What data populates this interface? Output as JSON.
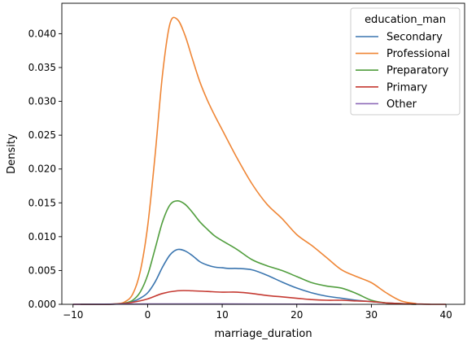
{
  "chart_data": {
    "type": "line",
    "subtype": "kde",
    "xlabel": "marriage_duration",
    "ylabel": "Density",
    "xlim": [
      -11.5,
      42.5
    ],
    "ylim": [
      0,
      0.0445
    ],
    "x_ticks": [
      -10,
      0,
      10,
      20,
      30,
      40
    ],
    "x_tick_labels": [
      "−10",
      "0",
      "10",
      "20",
      "30",
      "40"
    ],
    "y_ticks": [
      0,
      0.005,
      0.01,
      0.015,
      0.02,
      0.025,
      0.03,
      0.035,
      0.04
    ],
    "y_tick_labels": [
      "0.000",
      "0.005",
      "0.010",
      "0.015",
      "0.020",
      "0.025",
      "0.030",
      "0.035",
      "0.040"
    ],
    "grid": false,
    "legend": {
      "title": "education_man",
      "placement": "top-right"
    },
    "series": [
      {
        "name": "Secondary",
        "color": "#3a75af",
        "x": [
          -9,
          -6,
          -4,
          -3,
          -2,
          -1,
          0,
          1,
          2,
          3,
          4,
          5,
          6,
          7,
          8,
          9,
          10,
          11,
          12,
          14,
          16,
          18,
          20,
          22,
          24,
          26,
          28,
          30,
          32,
          34,
          36
        ],
        "y": [
          0,
          0,
          5e-05,
          0.00015,
          0.0004,
          0.0009,
          0.0017,
          0.0033,
          0.0055,
          0.0073,
          0.0081,
          0.0079,
          0.0072,
          0.0063,
          0.0058,
          0.0055,
          0.0054,
          0.0053,
          0.0053,
          0.0051,
          0.0043,
          0.0033,
          0.0024,
          0.0017,
          0.0012,
          0.0009,
          0.0006,
          0.0004,
          0.0002,
          0.0001,
          0
        ]
      },
      {
        "name": "Professional",
        "color": "#ef8636",
        "x": [
          -9,
          -6,
          -4,
          -3,
          -2,
          -1,
          0,
          1,
          2,
          3,
          4,
          5,
          6,
          7,
          8,
          9,
          10,
          12,
          14,
          16,
          18,
          20,
          22,
          24,
          26,
          28,
          30,
          32,
          34,
          36
        ],
        "y": [
          0,
          0,
          0.0001,
          0.0004,
          0.0015,
          0.0048,
          0.0115,
          0.022,
          0.034,
          0.0415,
          0.0421,
          0.0398,
          0.0363,
          0.0329,
          0.0302,
          0.0279,
          0.0258,
          0.0216,
          0.0178,
          0.0148,
          0.0127,
          0.0103,
          0.0087,
          0.0069,
          0.0051,
          0.0041,
          0.0032,
          0.0017,
          0.0005,
          0.0001
        ]
      },
      {
        "name": "Preparatory",
        "color": "#519e3e",
        "x": [
          -9,
          -6,
          -4,
          -3,
          -2,
          -1,
          0,
          1,
          2,
          3,
          4,
          5,
          6,
          7,
          8,
          9,
          10,
          12,
          14,
          16,
          18,
          20,
          22,
          24,
          26,
          28,
          30,
          32,
          34,
          36
        ],
        "y": [
          0,
          0,
          5e-05,
          0.0002,
          0.0006,
          0.0018,
          0.0043,
          0.0082,
          0.0122,
          0.0147,
          0.0153,
          0.0148,
          0.0136,
          0.0122,
          0.0111,
          0.0101,
          0.0094,
          0.0081,
          0.0066,
          0.0057,
          0.005,
          0.0041,
          0.0032,
          0.0027,
          0.0024,
          0.0016,
          0.0006,
          0.0002,
          0.0001,
          0
        ]
      },
      {
        "name": "Primary",
        "color": "#c53a32",
        "x": [
          -10,
          -6,
          -4,
          -2,
          0,
          2,
          4,
          6,
          8,
          10,
          12,
          14,
          16,
          18,
          20,
          22,
          24,
          26,
          28,
          30,
          32,
          34,
          36,
          38,
          40
        ],
        "y": [
          0,
          0,
          5e-05,
          0.0003,
          0.0008,
          0.0016,
          0.002,
          0.002,
          0.0019,
          0.0018,
          0.0018,
          0.0016,
          0.0013,
          0.0011,
          0.0009,
          0.0007,
          0.0006,
          0.0006,
          0.0005,
          0.0004,
          0.0002,
          0.0001,
          5e-05,
          0,
          0
        ]
      },
      {
        "name": "Other",
        "color": "#8d69b8",
        "x": [
          -10,
          0,
          10,
          20,
          26
        ],
        "y": [
          0,
          5e-05,
          5e-05,
          3e-05,
          0
        ]
      }
    ]
  }
}
